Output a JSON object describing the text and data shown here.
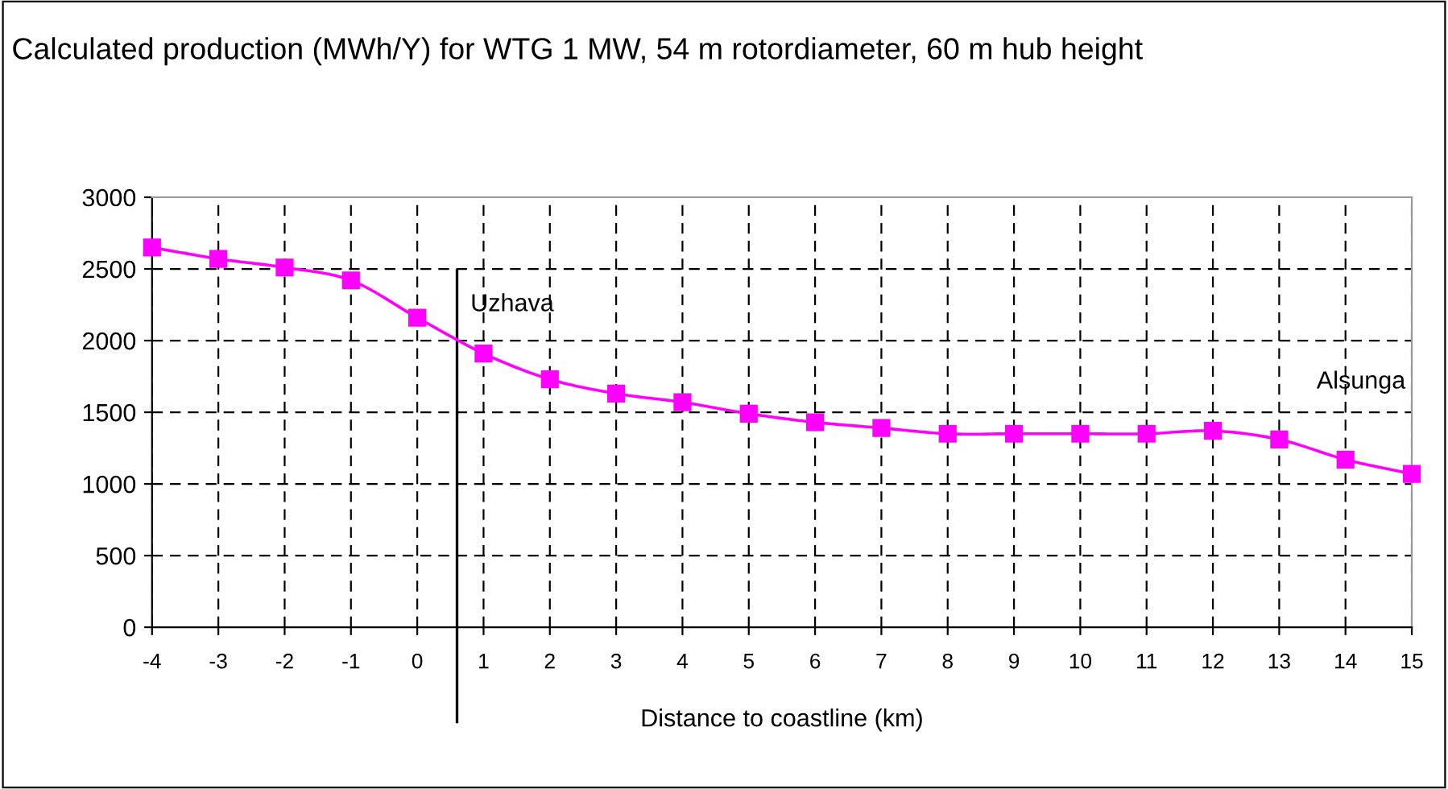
{
  "chart_data": {
    "type": "line",
    "title": "Calculated production (MWh/Y) for WTG 1 MW, 54 m rotordiameter, 60 m hub height",
    "xlabel": "Distance to coastline (km)",
    "x": [
      -4,
      -3,
      -2,
      -1,
      0,
      1,
      2,
      3,
      4,
      5,
      6,
      7,
      8,
      9,
      10,
      11,
      12,
      13,
      14,
      15
    ],
    "series": [
      {
        "color": "#ff00ff",
        "values": [
          2650,
          2570,
          2510,
          2420,
          2160,
          1910,
          1730,
          1630,
          1570,
          1490,
          1430,
          1390,
          1350,
          1350,
          1350,
          1350,
          1370,
          1310,
          1170,
          1070
        ]
      }
    ],
    "xlim": [
      -4,
      15
    ],
    "xticks": [
      -4,
      -3,
      -2,
      -1,
      0,
      1,
      2,
      3,
      4,
      5,
      6,
      7,
      8,
      9,
      10,
      11,
      12,
      13,
      14,
      15
    ],
    "ylim": [
      0,
      3000
    ],
    "yticks": [
      0,
      500,
      1000,
      1500,
      2000,
      2500,
      3000
    ],
    "ref_lines": [
      {
        "axis": "x",
        "value": 0.6,
        "label": "Uzhava",
        "color": "#000000",
        "line_style": "solid"
      }
    ],
    "annotations": [
      "Alsunga"
    ],
    "grid": true,
    "legend": false,
    "marker": "square",
    "line_style": "solid"
  }
}
